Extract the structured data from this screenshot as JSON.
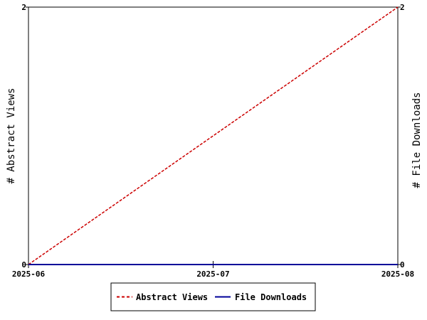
{
  "chart_data": {
    "type": "line",
    "x": [
      "2025-06",
      "2025-07",
      "2025-08"
    ],
    "xlabel": "",
    "ylabel_left": "# Abstract Views",
    "ylabel_right": "# File Downloads",
    "ylim_left": [
      0,
      2
    ],
    "ylim_right": [
      0,
      2
    ],
    "yticks_left": [
      "0",
      "2"
    ],
    "yticks_right": [
      "0",
      "2"
    ],
    "grid": false,
    "legend_placement": "bottom-center",
    "series": [
      {
        "name": "Abstract Views",
        "axis": "left",
        "values": [
          0,
          1,
          2
        ],
        "color": "#cc0000",
        "dash": "dashed"
      },
      {
        "name": "File Downloads",
        "axis": "right",
        "values": [
          0,
          0,
          0
        ],
        "color": "#000099",
        "dash": "solid"
      }
    ]
  }
}
